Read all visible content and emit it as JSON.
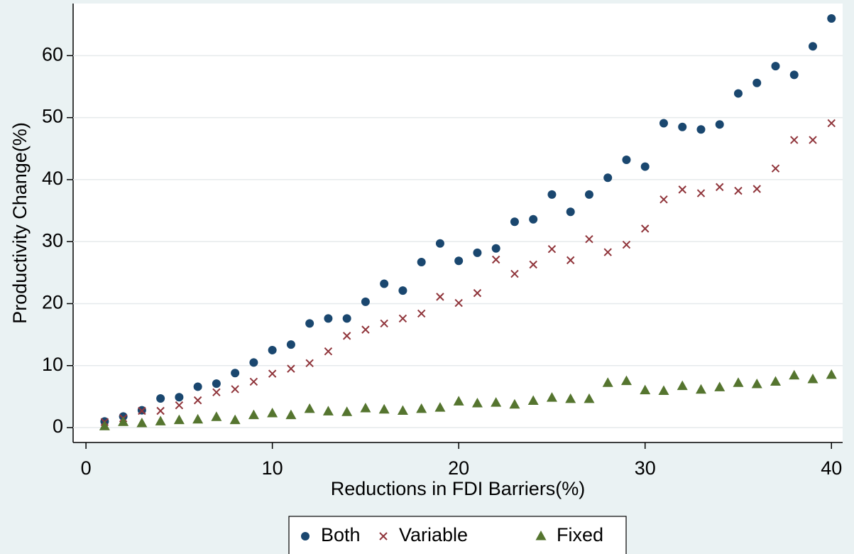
{
  "chart_data": {
    "type": "scatter",
    "x_label": "Reductions in FDI Barriers(%)",
    "y_label": "Productivity Change(%)",
    "x": [
      1,
      2,
      3,
      4,
      5,
      6,
      7,
      8,
      9,
      10,
      11,
      12,
      13,
      14,
      15,
      16,
      17,
      18,
      19,
      20,
      21,
      22,
      23,
      24,
      25,
      26,
      27,
      28,
      29,
      30,
      31,
      32,
      33,
      34,
      35,
      36,
      37,
      38,
      39,
      40
    ],
    "series": [
      {
        "name": "Both",
        "color": "#1a476f",
        "marker": "circle",
        "values": [
          1.0,
          1.8,
          2.8,
          4.7,
          4.9,
          6.6,
          7.1,
          8.8,
          10.5,
          12.5,
          13.4,
          16.8,
          17.6,
          17.6,
          20.3,
          23.2,
          22.1,
          26.7,
          29.7,
          26.9,
          28.2,
          28.9,
          33.2,
          33.6,
          37.6,
          34.8,
          37.6,
          40.3,
          43.2,
          42.1,
          49.1,
          48.5,
          48.1,
          48.9,
          53.9,
          55.6,
          58.3,
          56.9,
          61.5,
          66.0
        ]
      },
      {
        "name": "Variable",
        "color": "#90353b",
        "marker": "x",
        "values": [
          0.9,
          1.5,
          2.7,
          2.7,
          3.6,
          4.4,
          5.7,
          6.2,
          7.4,
          8.7,
          9.5,
          10.4,
          12.3,
          14.8,
          15.8,
          16.8,
          17.6,
          18.4,
          21.1,
          20.1,
          21.7,
          27.1,
          24.8,
          26.3,
          28.8,
          27.0,
          30.4,
          28.3,
          29.5,
          32.1,
          36.8,
          38.4,
          37.8,
          38.8,
          38.2,
          38.5,
          41.8,
          46.4,
          46.4,
          49.1
        ]
      },
      {
        "name": "Fixed",
        "color": "#55752f",
        "marker": "triangle",
        "values": [
          0.2,
          0.9,
          0.7,
          1.0,
          1.2,
          1.3,
          1.7,
          1.2,
          2.0,
          2.3,
          2.0,
          3.0,
          2.6,
          2.5,
          3.1,
          2.9,
          2.7,
          3.0,
          3.2,
          4.2,
          3.9,
          4.0,
          3.7,
          4.3,
          4.8,
          4.6,
          4.6,
          7.2,
          7.5,
          6.0,
          5.9,
          6.7,
          6.1,
          6.5,
          7.2,
          7.0,
          7.4,
          8.4,
          7.8,
          8.5
        ]
      }
    ],
    "xlim": [
      -0.69,
      40.6
    ],
    "ylim": [
      -2.4,
      68.4
    ],
    "xticks": [
      0,
      10,
      20,
      30,
      40
    ],
    "yticks": [
      0,
      10,
      20,
      30,
      40,
      50,
      60
    ],
    "grid": true
  }
}
